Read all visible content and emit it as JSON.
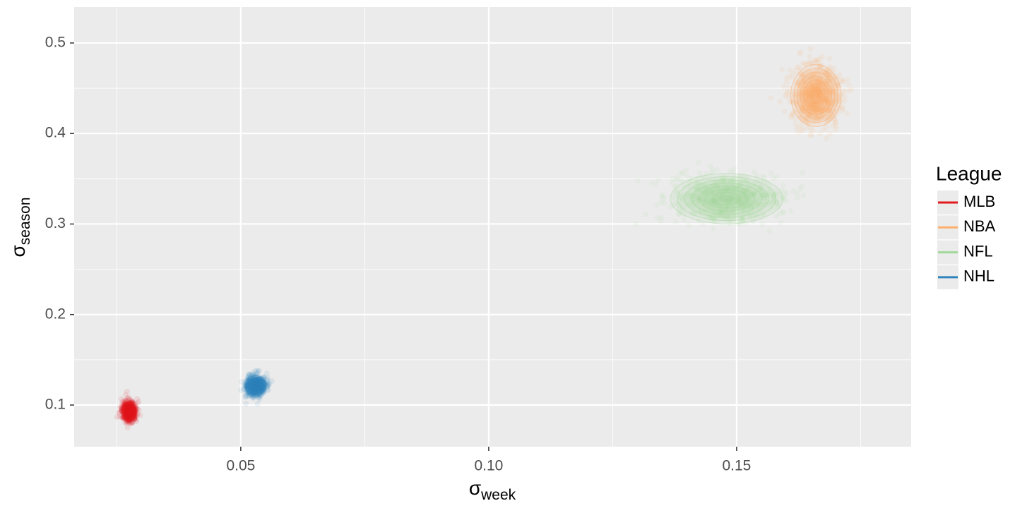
{
  "chart_data": {
    "type": "scatter",
    "xlabel_symbol": "σ",
    "xlabel_subscript": "week",
    "ylabel_symbol": "σ",
    "ylabel_subscript": "season",
    "legend_title": "League",
    "legend_position": "right",
    "grid": true,
    "xlim": [
      0.0164,
      0.1852
    ],
    "ylim": [
      0.054,
      0.5397
    ],
    "xticks": [
      0.05,
      {
        "value": 0.1,
        "label": "0.10"
      },
      0.15
    ],
    "yticks": [
      0.1,
      0.2,
      0.3,
      0.4,
      0.5
    ],
    "series": [
      {
        "name": "MLB",
        "color": "#e31a1c",
        "x": [
          0.0275
        ],
        "values": [
          0.093
        ]
      },
      {
        "name": "NBA",
        "color": "#fdae6b",
        "x": [
          0.166
        ],
        "values": [
          0.442
        ]
      },
      {
        "name": "NFL",
        "color": "#a1d99b",
        "x": [
          0.148
        ],
        "values": [
          0.328
        ]
      },
      {
        "name": "NHL",
        "color": "#3182bd",
        "x": [
          0.053
        ],
        "values": [
          0.121
        ]
      }
    ]
  }
}
